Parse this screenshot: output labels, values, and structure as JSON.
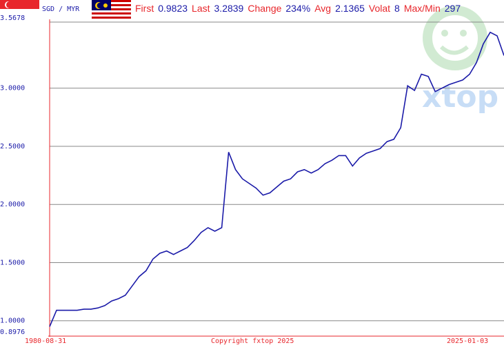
{
  "chart_data": {
    "type": "line",
    "pair": "SGD / MYR",
    "stats": [
      {
        "label": "First",
        "value": "0.9823"
      },
      {
        "label": "Last",
        "value": "3.2839"
      },
      {
        "label": "Change",
        "value": "234%"
      },
      {
        "label": "Avg",
        "value": "2.1365"
      },
      {
        "label": "Volat",
        "value": "8"
      },
      {
        "label": "Max/Min",
        "value": "297"
      }
    ],
    "x_start_label": "1980-08-31",
    "x_end_label": "2025-01-03",
    "copyright": "Copyright fxtop 2025",
    "watermark": "xtop",
    "color": "#1a1aa8",
    "values": [
      0.95,
      1.09,
      1.09,
      1.09,
      1.09,
      1.1,
      1.1,
      1.11,
      1.13,
      1.17,
      1.19,
      1.22,
      1.3,
      1.38,
      1.43,
      1.53,
      1.58,
      1.6,
      1.57,
      1.6,
      1.63,
      1.69,
      1.76,
      1.8,
      1.77,
      1.8,
      2.45,
      2.3,
      2.22,
      2.18,
      2.14,
      2.08,
      2.1,
      2.15,
      2.2,
      2.22,
      2.28,
      2.3,
      2.27,
      2.3,
      2.35,
      2.38,
      2.42,
      2.42,
      2.33,
      2.4,
      2.44,
      2.46,
      2.48,
      2.54,
      2.56,
      2.66,
      3.02,
      2.98,
      3.12,
      3.1,
      2.97,
      3.0,
      3.03,
      3.05,
      3.07,
      3.12,
      3.22,
      3.38,
      3.48,
      3.45,
      3.28
    ],
    "ylim": [
      0.8976,
      3.5678
    ],
    "yticks": [
      0.8976,
      {
        "value": 1,
        "label": "1.0000"
      },
      {
        "value": 1.5,
        "label": "1.5000"
      },
      {
        "value": 2,
        "label": "2.0000"
      },
      {
        "value": 2.5,
        "label": "2.5000"
      },
      {
        "value": 3,
        "label": "3.0000"
      },
      3.5678
    ],
    "grid": true
  }
}
